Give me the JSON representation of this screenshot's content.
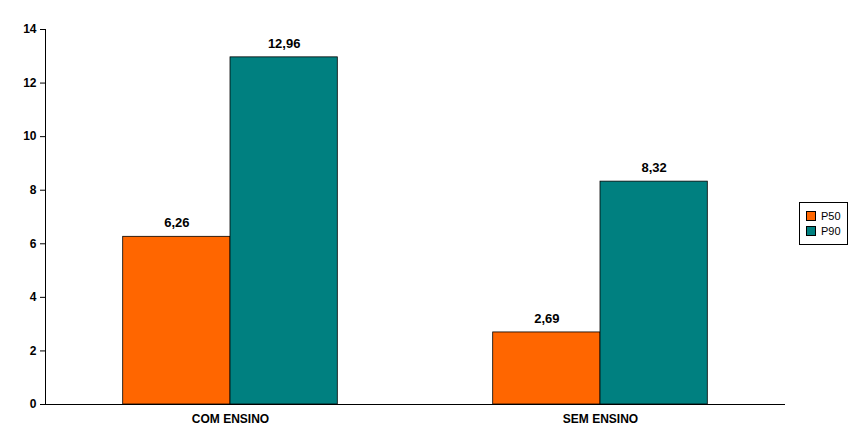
{
  "chart_data": {
    "type": "bar",
    "categories": [
      "COM ENSINO",
      "SEM ENSINO"
    ],
    "series": [
      {
        "name": "P50",
        "color": "#ff6600",
        "values": [
          6.26,
          2.69
        ],
        "value_labels": [
          "6,26",
          "2,69"
        ]
      },
      {
        "name": "P90",
        "color": "#008080",
        "values": [
          12.96,
          8.32
        ],
        "value_labels": [
          "12,96",
          "8,32"
        ]
      }
    ],
    "ylim": [
      0,
      14
    ],
    "yticks": [
      0,
      2,
      4,
      6,
      8,
      10,
      12,
      14
    ],
    "grid": false,
    "legend": "right",
    "data_labels": true
  }
}
